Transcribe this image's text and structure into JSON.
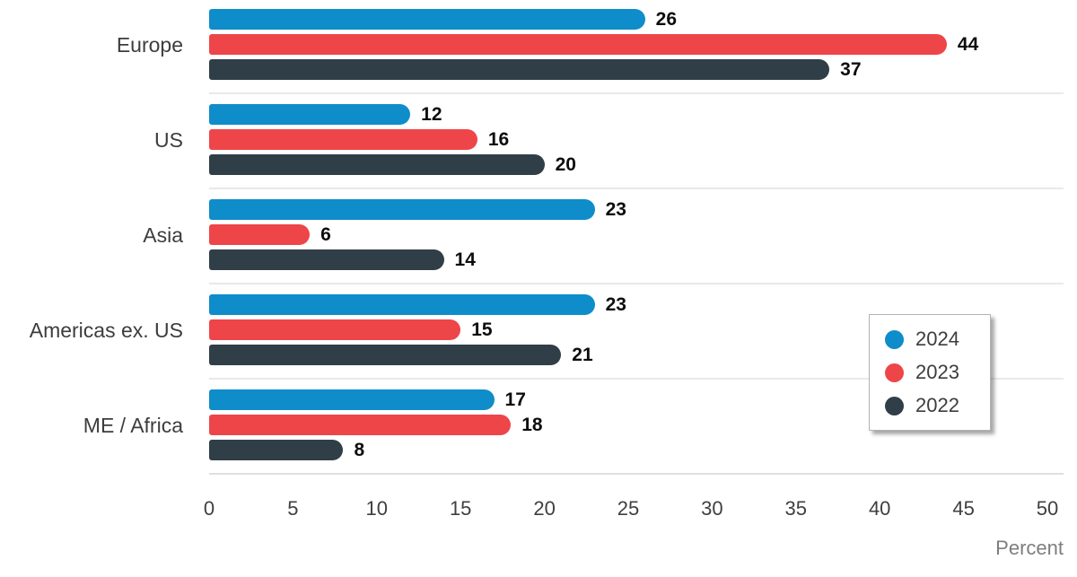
{
  "chart_data": {
    "type": "bar",
    "orientation": "horizontal",
    "title": "",
    "xlabel": "Percent",
    "ylabel": "",
    "xlim": [
      0,
      50
    ],
    "xticks": [
      0,
      5,
      10,
      15,
      20,
      25,
      30,
      35,
      40,
      45,
      50
    ],
    "grid": "category-separator-lines",
    "legend_position": "middle-right",
    "categories": [
      "Europe",
      "US",
      "Asia",
      "Americas ex. US",
      "ME / Africa"
    ],
    "series": [
      {
        "name": "2024",
        "color": "#0e8dca",
        "values": [
          26,
          12,
          23,
          23,
          17
        ]
      },
      {
        "name": "2023",
        "color": "#ee4549",
        "values": [
          44,
          16,
          6,
          15,
          18
        ]
      },
      {
        "name": "2022",
        "color": "#303e47",
        "values": [
          37,
          20,
          14,
          21,
          8
        ]
      }
    ],
    "value_labels_shown": true,
    "colors": {
      "value_label": "#0d0d0d",
      "category_label": "#3d3d3d",
      "tick_label": "#3f3f3f",
      "axis_title": "#7e7e7e",
      "separator_line": "#e9e9e9",
      "legend_border": "#b3b3b3",
      "background": "#ffffff"
    }
  }
}
